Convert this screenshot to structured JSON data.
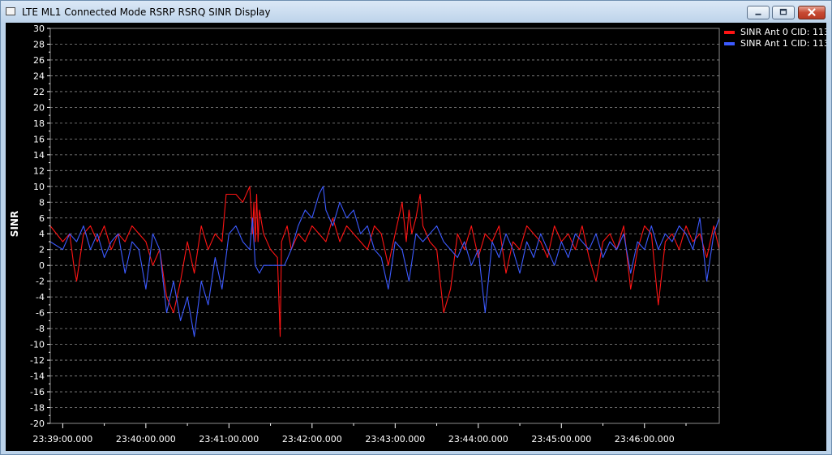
{
  "window": {
    "title": "LTE ML1 Connected Mode RSRP RSRQ SINR Display",
    "buttons": [
      "minimize",
      "maximize",
      "close"
    ]
  },
  "colors": {
    "background": "#000000",
    "grid": "#8c8c8c",
    "axis_text": "#ffffff",
    "series_ant0": "#ff1414",
    "series_ant1": "#3c5aff"
  },
  "chart_data": {
    "type": "line",
    "title": "",
    "xlabel": "",
    "ylabel": "SINR",
    "ylim": [
      -20,
      30
    ],
    "yticks": [
      30,
      28,
      26,
      24,
      22,
      20,
      18,
      16,
      14,
      12,
      10,
      8,
      6,
      4,
      2,
      0,
      -2,
      -4,
      -6,
      -8,
      -10,
      -12,
      -14,
      -16,
      -18,
      -20
    ],
    "xlim": [
      "23:38:51",
      "23:46:54"
    ],
    "xticks": [
      "23:39:00.000",
      "23:40:00.000",
      "23:41:00.000",
      "23:42:00.000",
      "23:43:00.000",
      "23:44:00.000",
      "23:45:00.000",
      "23:46:00.000"
    ],
    "grid": "horizontal dashed",
    "legend": "top-right",
    "series": [
      {
        "name": "SINR Ant 0 CID: 113",
        "color": "#ff1414",
        "x": [
          "23:38:51",
          "23:39:00",
          "23:39:05",
          "23:39:08",
          "23:39:10",
          "23:39:15",
          "23:39:20",
          "23:39:25",
          "23:39:30",
          "23:39:35",
          "23:39:40",
          "23:39:45",
          "23:39:50",
          "23:39:55",
          "23:40:00",
          "23:40:05",
          "23:40:10",
          "23:40:15",
          "23:40:20",
          "23:40:25",
          "23:40:30",
          "23:40:35",
          "23:40:40",
          "23:40:45",
          "23:40:50",
          "23:40:55",
          "23:40:58",
          "23:41:05",
          "23:41:10",
          "23:41:15",
          "23:41:17",
          "23:41:18",
          "23:41:19",
          "23:41:20",
          "23:41:21",
          "23:41:22",
          "23:41:25",
          "23:41:30",
          "23:41:35",
          "23:41:37",
          "23:41:38",
          "23:41:42",
          "23:41:45",
          "23:41:50",
          "23:41:55",
          "23:42:00",
          "23:42:05",
          "23:42:10",
          "23:42:15",
          "23:42:20",
          "23:42:25",
          "23:42:30",
          "23:42:35",
          "23:42:40",
          "23:42:45",
          "23:42:50",
          "23:42:55",
          "23:43:00",
          "23:43:05",
          "23:43:08",
          "23:43:10",
          "23:43:12",
          "23:43:15",
          "23:43:18",
          "23:43:20",
          "23:43:25",
          "23:43:30",
          "23:43:35",
          "23:43:40",
          "23:43:45",
          "23:43:50",
          "23:43:55",
          "23:44:00",
          "23:44:05",
          "23:44:10",
          "23:44:15",
          "23:44:20",
          "23:44:25",
          "23:44:30",
          "23:44:35",
          "23:44:40",
          "23:44:45",
          "23:44:50",
          "23:44:55",
          "23:45:00",
          "23:45:05",
          "23:45:10",
          "23:45:15",
          "23:45:20",
          "23:45:25",
          "23:45:30",
          "23:45:35",
          "23:45:40",
          "23:45:45",
          "23:45:50",
          "23:45:55",
          "23:46:00",
          "23:46:05",
          "23:46:10",
          "23:46:15",
          "23:46:20",
          "23:46:25",
          "23:46:30",
          "23:46:35",
          "23:46:40",
          "23:46:45",
          "23:46:50",
          "23:46:54"
        ],
        "values": [
          5,
          3,
          4,
          0,
          -2,
          4,
          5,
          3,
          5,
          2,
          4,
          3,
          5,
          4,
          3,
          0,
          2,
          -4,
          -6,
          -2,
          3,
          -1,
          5,
          2,
          4,
          3,
          9,
          9,
          8,
          10,
          4,
          8,
          3,
          9,
          3,
          7,
          4,
          2,
          1,
          -9,
          3,
          5,
          2,
          4,
          3,
          5,
          4,
          3,
          6,
          3,
          5,
          4,
          3,
          2,
          5,
          4,
          0,
          4,
          8,
          3,
          7,
          4,
          6,
          9,
          5,
          3,
          2,
          -6,
          -3,
          4,
          2,
          5,
          1,
          4,
          3,
          5,
          -1,
          3,
          2,
          5,
          4,
          3,
          1,
          5,
          3,
          4,
          2,
          5,
          1,
          -2,
          3,
          4,
          2,
          5,
          -3,
          2,
          5,
          4,
          -5,
          3,
          4,
          2,
          5,
          3,
          4,
          1,
          5,
          2
        ]
      },
      {
        "name": "SINR Ant 1 CID: 113",
        "color": "#3c5aff",
        "x": [
          "23:38:51",
          "23:39:00",
          "23:39:05",
          "23:39:10",
          "23:39:15",
          "23:39:20",
          "23:39:25",
          "23:39:30",
          "23:39:35",
          "23:39:40",
          "23:39:45",
          "23:39:50",
          "23:39:55",
          "23:40:00",
          "23:40:05",
          "23:40:10",
          "23:40:15",
          "23:40:20",
          "23:40:25",
          "23:40:30",
          "23:40:35",
          "23:40:40",
          "23:40:45",
          "23:40:50",
          "23:40:55",
          "23:41:00",
          "23:41:05",
          "23:41:10",
          "23:41:15",
          "23:41:17",
          "23:41:19",
          "23:41:22",
          "23:41:25",
          "23:41:30",
          "23:41:35",
          "23:41:40",
          "23:41:45",
          "23:41:50",
          "23:41:55",
          "23:42:00",
          "23:42:05",
          "23:42:08",
          "23:42:10",
          "23:42:15",
          "23:42:20",
          "23:42:25",
          "23:42:30",
          "23:42:35",
          "23:42:40",
          "23:42:45",
          "23:42:50",
          "23:42:55",
          "23:43:00",
          "23:43:05",
          "23:43:10",
          "23:43:15",
          "23:43:20",
          "23:43:25",
          "23:43:30",
          "23:43:35",
          "23:43:40",
          "23:43:45",
          "23:43:50",
          "23:43:55",
          "23:44:00",
          "23:44:05",
          "23:44:10",
          "23:44:15",
          "23:44:20",
          "23:44:25",
          "23:44:30",
          "23:44:35",
          "23:44:40",
          "23:44:45",
          "23:44:50",
          "23:44:55",
          "23:45:00",
          "23:45:05",
          "23:45:10",
          "23:45:15",
          "23:45:20",
          "23:45:25",
          "23:45:30",
          "23:45:35",
          "23:45:40",
          "23:45:45",
          "23:45:50",
          "23:45:55",
          "23:46:00",
          "23:46:05",
          "23:46:10",
          "23:46:15",
          "23:46:20",
          "23:46:25",
          "23:46:30",
          "23:46:35",
          "23:46:40",
          "23:46:45",
          "23:46:50",
          "23:46:54"
        ],
        "values": [
          3,
          2,
          4,
          3,
          5,
          2,
          4,
          1,
          3,
          4,
          -1,
          3,
          2,
          -3,
          4,
          2,
          -6,
          -2,
          -7,
          -4,
          -9,
          -2,
          -5,
          1,
          -3,
          4,
          5,
          3,
          2,
          6,
          0,
          -1,
          0,
          0,
          0,
          0,
          2,
          5,
          7,
          6,
          9,
          10,
          7,
          5,
          8,
          6,
          7,
          4,
          5,
          2,
          1,
          -3,
          3,
          2,
          -2,
          4,
          3,
          4,
          5,
          3,
          2,
          1,
          3,
          0,
          2,
          -6,
          3,
          1,
          4,
          2,
          -1,
          3,
          1,
          4,
          2,
          0,
          3,
          1,
          4,
          3,
          2,
          4,
          1,
          3,
          2,
          4,
          -1,
          3,
          2,
          5,
          2,
          4,
          3,
          5,
          4,
          2,
          6,
          -2,
          4,
          6
        ]
      }
    ]
  }
}
